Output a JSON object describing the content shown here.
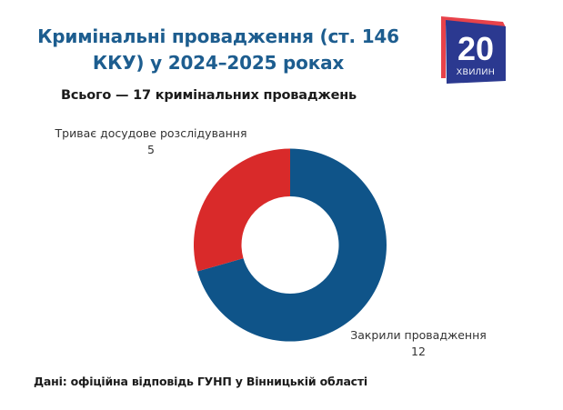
{
  "header": {
    "title_line1": "Кримінальні провадження (ст. 146",
    "title_line2": "ККУ) у 2024–2025 роках",
    "subtitle": "Всього — 17 кримінальних проваджень"
  },
  "logo": {
    "number": "20",
    "word": "ХВИЛИН",
    "colors": {
      "front": "#2b3990",
      "back": "#e8424a"
    }
  },
  "labels": {
    "ongoing": {
      "name": "Триває досудове розслідування",
      "value": "5"
    },
    "closed": {
      "name": "Закрили провадження",
      "value": "12"
    }
  },
  "footer": {
    "source": "Дані: офіційна відповідь ГУНП у Вінницькій області"
  },
  "colors": {
    "title": "#1d5d8f",
    "closed": "#0f5489",
    "ongoing": "#d92a2a"
  },
  "chart_data": {
    "type": "pie",
    "variant": "donut",
    "title": "Кримінальні провадження (ст. 146 ККУ) у 2024–2025 роках",
    "subtitle": "Всього — 17 кримінальних проваджень",
    "categories": [
      "Закрили провадження",
      "Триває досудове розслідування"
    ],
    "values": [
      12,
      5
    ],
    "colors": [
      "#0f5489",
      "#d92a2a"
    ],
    "total": 17,
    "start_angle_deg": 0,
    "direction": "clockwise",
    "legend": "none (direct labels)",
    "source": "Дані: офіційна відповідь ГУНП у Вінницькій області"
  }
}
